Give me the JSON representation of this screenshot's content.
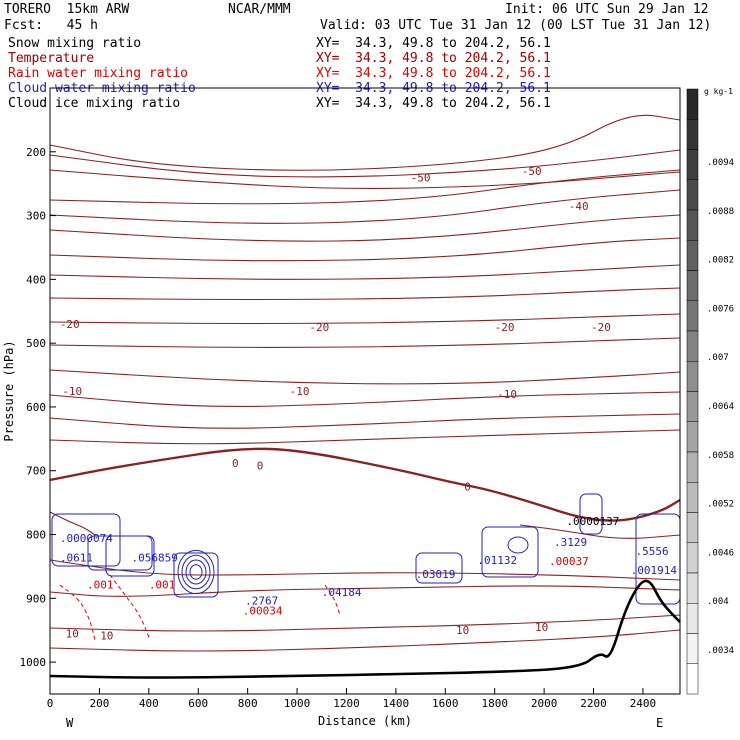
{
  "header": {
    "model": "TORERO  15km ARW",
    "center": "NCAR/MMM",
    "init": "Init: 06 UTC Sun 29 Jan 12",
    "fcst": "Fcst:   45 h",
    "valid": "Valid: 03 UTC Tue 31 Jan 12 (00 LST Tue 31 Jan 12)"
  },
  "legend": [
    {
      "name": "Snow mixing ratio",
      "xy": "XY=  34.3, 49.8 to 204.2, 56.1",
      "color": "#000000"
    },
    {
      "name": "Temperature",
      "xy": "XY=  34.3, 49.8 to 204.2, 56.1",
      "color": "#a00000"
    },
    {
      "name": "Rain water mixing ratio",
      "xy": "XY=  34.3, 49.8 to 204.2, 56.1",
      "color": "#e00000"
    },
    {
      "name": "Cloud water mixing ratio",
      "xy": "XY=  34.3, 49.8 to 204.2, 56.1",
      "color": "#2020c0"
    },
    {
      "name": "Cloud ice mixing ratio",
      "xy": "XY=  34.3, 49.8 to 204.2, 56.1",
      "color": "#000000"
    }
  ],
  "colorbar": {
    "unit": "g kg-1",
    "ticks": [
      ".0094",
      ".0088",
      ".0082",
      ".0076",
      ".007",
      ".0064",
      ".0058",
      ".0052",
      ".0046",
      ".004",
      ".0034"
    ]
  },
  "chart_data": {
    "type": "cross-section contour",
    "xlabel": "Distance (km)",
    "ylabel": "Pressure (hPa)",
    "xlim": [
      0,
      2550
    ],
    "ylim": [
      1050,
      100
    ],
    "x_ticks": [
      0,
      200,
      400,
      600,
      800,
      1000,
      1200,
      1400,
      1600,
      1800,
      2000,
      2200,
      2400
    ],
    "y_ticks": [
      200,
      300,
      400,
      500,
      600,
      700,
      800,
      900,
      1000
    ],
    "x_end_labels": {
      "left": "W",
      "right": "E"
    },
    "temperature_contours": [
      {
        "value": -50,
        "labels": [
          {
            "x": 1500,
            "p": 240
          },
          {
            "x": 1950,
            "p": 230
          }
        ]
      },
      {
        "value": -40,
        "labels": [
          {
            "x": 2140,
            "p": 285
          }
        ]
      },
      {
        "value": -20,
        "labels": [
          {
            "x": 80,
            "p": 470
          },
          {
            "x": 1090,
            "p": 475
          },
          {
            "x": 1840,
            "p": 475
          },
          {
            "x": 2230,
            "p": 475
          }
        ]
      },
      {
        "value": -10,
        "labels": [
          {
            "x": 90,
            "p": 575
          },
          {
            "x": 1010,
            "p": 575
          },
          {
            "x": 1850,
            "p": 580
          }
        ]
      },
      {
        "value": 0,
        "labels": [
          {
            "x": 750,
            "p": 688
          },
          {
            "x": 850,
            "p": 692
          },
          {
            "x": 1690,
            "p": 725
          }
        ]
      },
      {
        "value": 10,
        "labels": [
          {
            "x": 90,
            "p": 955
          },
          {
            "x": 230,
            "p": 958
          },
          {
            "x": 1670,
            "p": 950
          },
          {
            "x": 1990,
            "p": 945
          }
        ]
      }
    ],
    "maxima_labels": [
      {
        "text": ".0000074",
        "x": 40,
        "p": 812,
        "color": "#2020c0"
      },
      {
        "text": ".0611",
        "x": 40,
        "p": 842,
        "color": "#2020c0"
      },
      {
        "text": ".056859",
        "x": 330,
        "p": 842,
        "color": "#2020c0"
      },
      {
        "text": ".2767",
        "x": 790,
        "p": 910,
        "color": "#2020c0"
      },
      {
        "text": ".00034",
        "x": 780,
        "p": 925,
        "color": "#e00000"
      },
      {
        "text": ".04184",
        "x": 1100,
        "p": 896,
        "color": "#2020c0"
      },
      {
        "text": ".03019",
        "x": 1480,
        "p": 868,
        "color": "#2020c0"
      },
      {
        "text": ".01132",
        "x": 1730,
        "p": 846,
        "color": "#2020c0"
      },
      {
        "text": ".0000137",
        "x": 2090,
        "p": 785,
        "color": "#000000"
      },
      {
        "text": ".3129",
        "x": 2040,
        "p": 818,
        "color": "#2020c0"
      },
      {
        "text": ".00037",
        "x": 2020,
        "p": 848,
        "color": "#e00000"
      },
      {
        "text": ".5556",
        "x": 2370,
        "p": 832,
        "color": "#2020c0"
      },
      {
        "text": ".001914",
        "x": 2350,
        "p": 862,
        "color": "#2020c0"
      },
      {
        "text": ".001",
        "x": 150,
        "p": 885,
        "color": "#e00000"
      },
      {
        "text": ".001",
        "x": 400,
        "p": 885,
        "color": "#e00000"
      }
    ]
  }
}
